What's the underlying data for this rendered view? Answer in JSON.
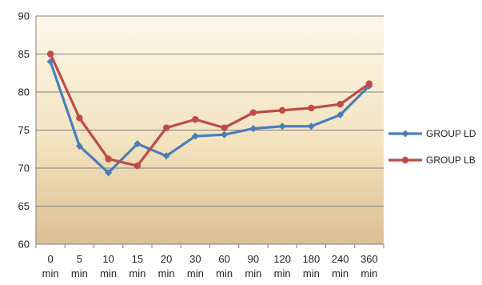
{
  "chart_data": {
    "type": "line",
    "title": "",
    "xlabel": "",
    "ylabel": "",
    "categories": [
      [
        "0",
        "min"
      ],
      [
        "5",
        "min"
      ],
      [
        "10",
        "min"
      ],
      [
        "15",
        "min"
      ],
      [
        "20",
        "min"
      ],
      [
        "30",
        "min"
      ],
      [
        "60",
        "min"
      ],
      [
        "90",
        "min"
      ],
      [
        "120",
        "min"
      ],
      [
        "180",
        "min"
      ],
      [
        "240",
        "min"
      ],
      [
        "360",
        "min"
      ]
    ],
    "ylim": [
      60,
      90
    ],
    "yticks": [
      60,
      65,
      70,
      75,
      80,
      85,
      90
    ],
    "grid": "horizontal",
    "legend_position": "right",
    "series": [
      {
        "name": "GROUP LD",
        "color": "#4a7ebb",
        "marker": "diamond",
        "values": [
          84.0,
          72.9,
          69.4,
          73.2,
          71.6,
          74.2,
          74.4,
          75.2,
          75.5,
          75.5,
          77.0,
          80.8
        ]
      },
      {
        "name": "GROUP LB",
        "color": "#be4b48",
        "marker": "circle",
        "values": [
          85.0,
          76.6,
          71.2,
          70.3,
          75.3,
          76.4,
          75.3,
          77.3,
          77.6,
          77.9,
          78.4,
          81.1
        ]
      }
    ]
  }
}
